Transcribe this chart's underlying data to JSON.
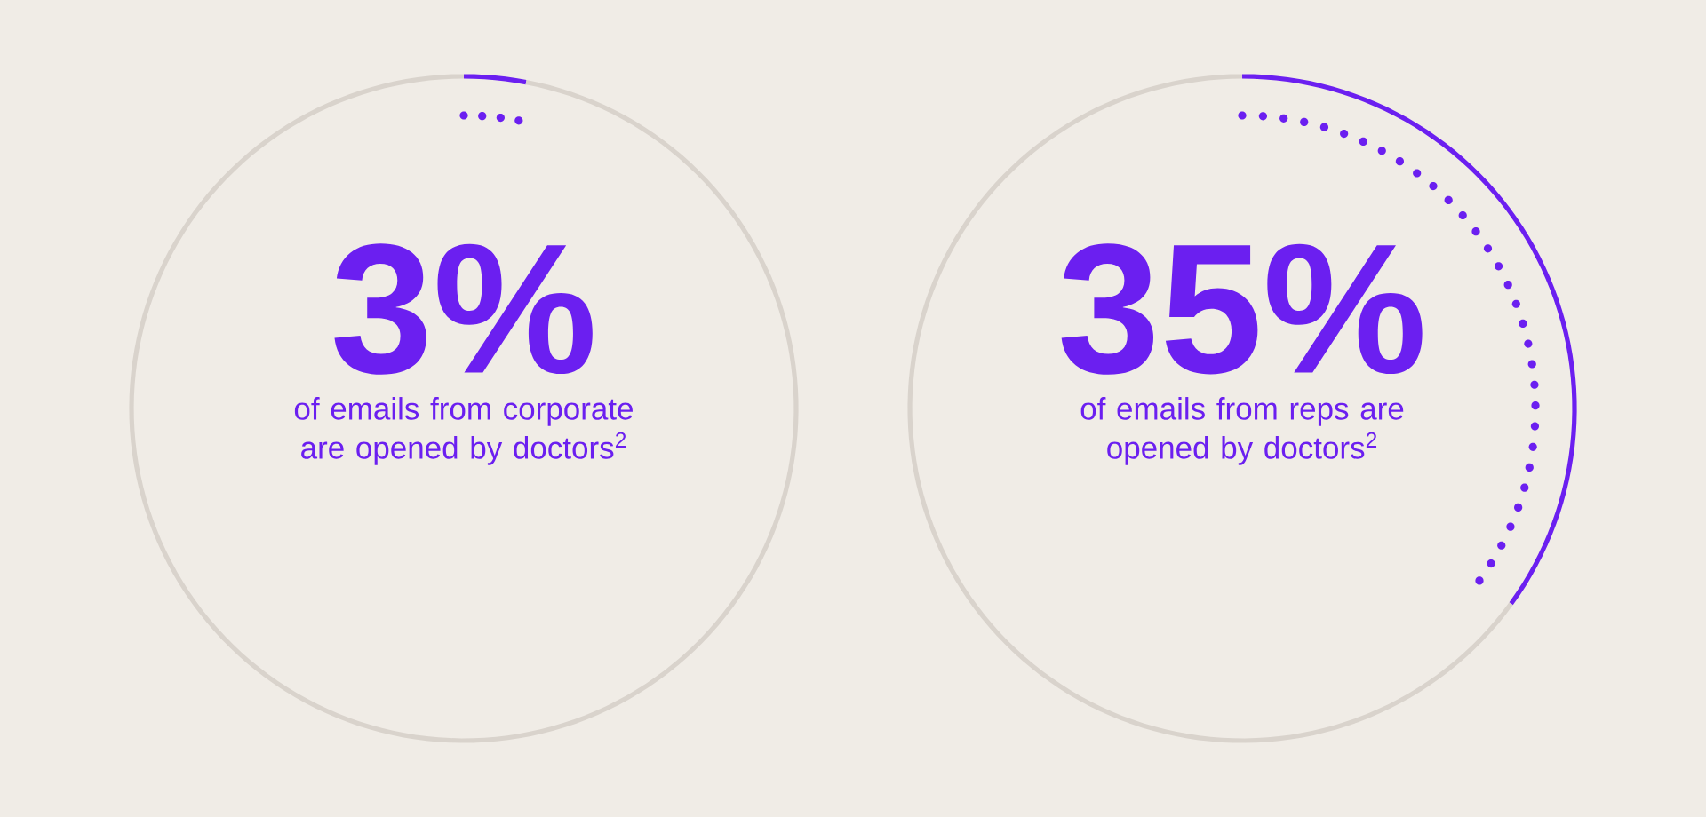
{
  "chart_data": [
    {
      "type": "donut",
      "categories": [
        null,
        null
      ],
      "values": [
        3,
        97
      ],
      "colors": [
        "#6b1ff0",
        "#d9d3cc"
      ],
      "value_labels": [
        "3%",
        null
      ],
      "annotations": [
        "of emails from corporate are opened by doctors$^{2}$"
      ]
    },
    {
      "type": "donut",
      "categories": [
        null,
        null
      ],
      "values": [
        35,
        65
      ],
      "colors": [
        "#6b1ff0",
        "#d9d3cc"
      ],
      "value_labels": [
        "35%",
        null
      ],
      "annotations": [
        "of emails from reps are opened by doctors$^{2}$"
      ]
    }
  ]
}
